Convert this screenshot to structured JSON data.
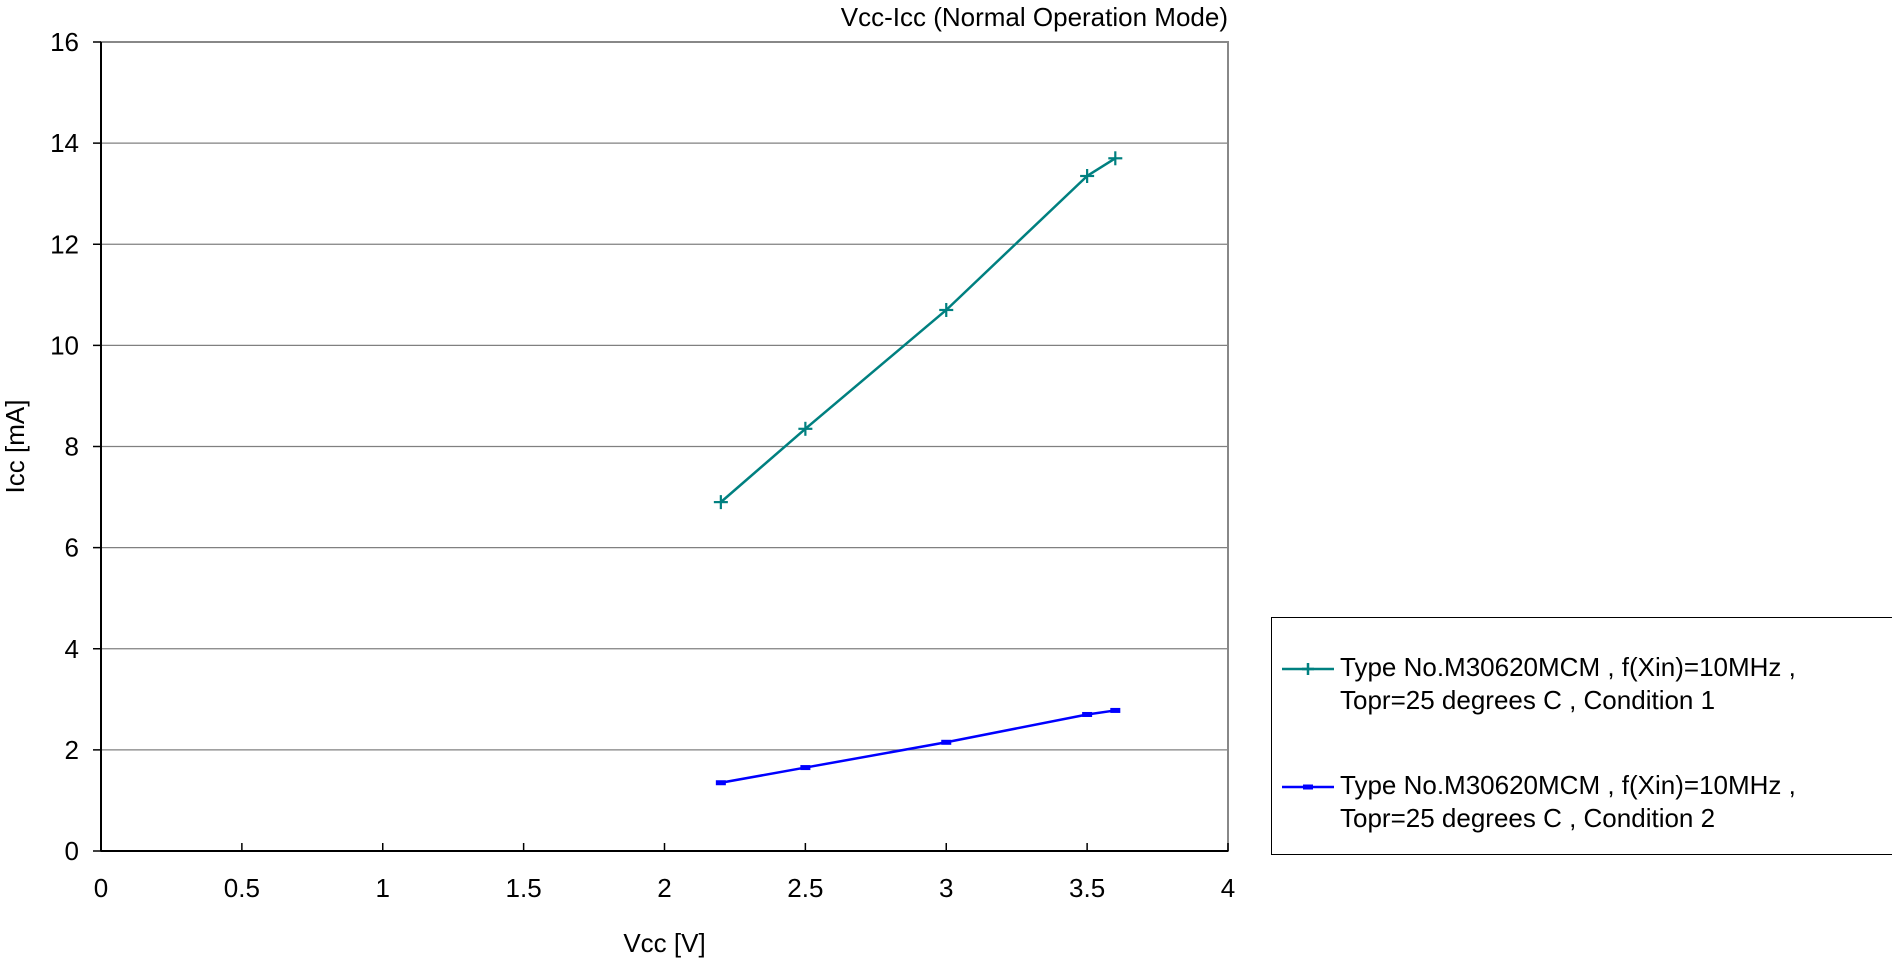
{
  "chart_data": {
    "type": "line",
    "title": "Vcc-Icc (Normal Operation Mode)",
    "xlabel": "Vcc [V]",
    "ylabel": "Icc [mA]",
    "xlim": [
      0,
      4
    ],
    "ylim": [
      0,
      16
    ],
    "xticks": [
      "0",
      "0.5",
      "1",
      "1.5",
      "2",
      "2.5",
      "3",
      "3.5",
      "4"
    ],
    "yticks": [
      "0",
      "2",
      "4",
      "6",
      "8",
      "10",
      "12",
      "14",
      "16"
    ],
    "grid": "horizontal",
    "legend_position": "right",
    "series": [
      {
        "name": "Type No.M30620MCM  ,  f(Xin)=10MHz  ,  Topr=25 degrees C  ,  Condition 1",
        "color": "#008080",
        "marker": "plus",
        "x": [
          2.2,
          2.5,
          3.0,
          3.5,
          3.6
        ],
        "y": [
          6.9,
          8.35,
          10.7,
          13.35,
          13.7
        ]
      },
      {
        "name": "Type No.M30620MCM  ,  f(Xin)=10MHz  ,  Topr=25 degrees C  ,  Condition 2",
        "color": "#0000FF",
        "marker": "dash",
        "x": [
          2.2,
          2.5,
          3.0,
          3.5,
          3.6
        ],
        "y": [
          1.35,
          1.65,
          2.15,
          2.7,
          2.78
        ]
      }
    ]
  },
  "legend": {
    "item1": {
      "line1": "Type No.M30620MCM  ,  f(Xin)=10MHz  ,",
      "line2": "Topr=25 degrees C  ,  Condition 1"
    },
    "item2": {
      "line1": "Type No.M30620MCM  ,  f(Xin)=10MHz  ,",
      "line2": "Topr=25 degrees C  ,  Condition 2"
    }
  }
}
